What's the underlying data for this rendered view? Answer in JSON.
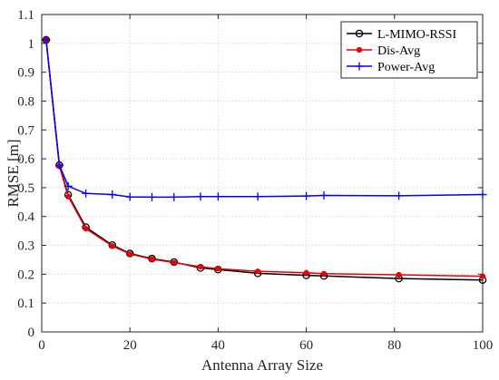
{
  "chart_data": {
    "type": "line",
    "xlabel": "Antenna Array Size",
    "ylabel": "RMSE [m]",
    "xlim": [
      0,
      100
    ],
    "ylim": [
      0,
      1.1
    ],
    "xticks": [
      0,
      20,
      40,
      60,
      80,
      100
    ],
    "yticks": [
      0,
      0.1,
      0.2,
      0.3,
      0.4,
      0.5,
      0.6,
      0.7,
      0.8,
      0.9,
      1,
      1.1
    ],
    "grid": true,
    "legend_position": "top-right",
    "series": [
      {
        "name": "L-MIMO-RSSI",
        "color": "#000000",
        "marker": "circle",
        "x": [
          1,
          4,
          6,
          10,
          16,
          20,
          25,
          30,
          36,
          40,
          49,
          60,
          64,
          81,
          100
        ],
        "y": [
          1.012,
          0.578,
          0.475,
          0.363,
          0.301,
          0.272,
          0.254,
          0.242,
          0.222,
          0.216,
          0.203,
          0.196,
          0.194,
          0.185,
          0.18
        ]
      },
      {
        "name": "Dis-Avg",
        "color": "#e8000b",
        "marker": "dot",
        "x": [
          1,
          4,
          6,
          10,
          16,
          20,
          25,
          30,
          36,
          40,
          49,
          60,
          64,
          81,
          100
        ],
        "y": [
          1.012,
          0.575,
          0.469,
          0.358,
          0.298,
          0.27,
          0.252,
          0.24,
          0.226,
          0.219,
          0.21,
          0.205,
          0.202,
          0.198,
          0.193
        ]
      },
      {
        "name": "Power-Avg",
        "color": "#0000ff",
        "marker": "plus",
        "x": [
          1,
          4,
          6,
          10,
          16,
          20,
          25,
          30,
          36,
          40,
          49,
          60,
          64,
          81,
          100
        ],
        "y": [
          1.012,
          0.578,
          0.505,
          0.48,
          0.476,
          0.468,
          0.467,
          0.467,
          0.469,
          0.469,
          0.469,
          0.471,
          0.473,
          0.472,
          0.476
        ]
      }
    ]
  }
}
